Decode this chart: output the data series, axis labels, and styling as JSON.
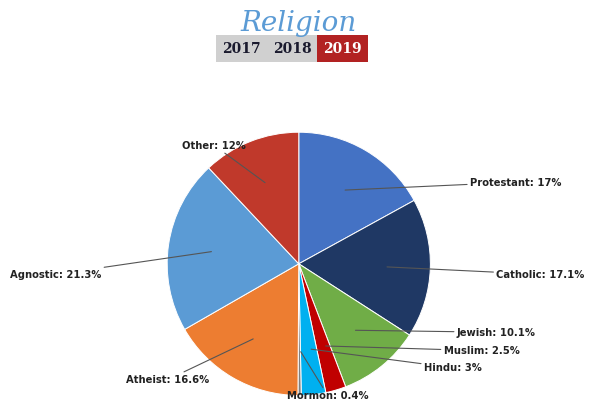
{
  "title": "Religion",
  "title_color": "#5b9bd5",
  "title_fontsize": 20,
  "year_labels": [
    "2017",
    "2018",
    "2019"
  ],
  "year_bg_colors": [
    "#d0d0d0",
    "#d0d0d0",
    "#b22222"
  ],
  "year_text_colors": [
    "#1a1a2e",
    "#1a1a2e",
    "#ffffff"
  ],
  "slices": [
    {
      "label": "Protestant",
      "value": 17.0,
      "color": "#4472c4",
      "pct": "17%"
    },
    {
      "label": "Catholic",
      "value": 17.1,
      "color": "#1f3864",
      "pct": "17.1%"
    },
    {
      "label": "Jewish",
      "value": 10.1,
      "color": "#70ad47",
      "pct": "10.1%"
    },
    {
      "label": "Muslim",
      "value": 2.5,
      "color": "#c00000",
      "pct": "2.5%"
    },
    {
      "label": "Hindu",
      "value": 3.0,
      "color": "#00b0f0",
      "pct": "3%"
    },
    {
      "label": "Mormon",
      "value": 0.4,
      "color": "#808080",
      "pct": "0.4%"
    },
    {
      "label": "Atheist",
      "value": 16.6,
      "color": "#ed7d31",
      "pct": "16.6%"
    },
    {
      "label": "Agnostic",
      "value": 21.3,
      "color": "#5b9bd5",
      "pct": "21.3%"
    },
    {
      "label": "Other",
      "value": 12.0,
      "color": "#c0392b",
      "pct": "12%"
    }
  ],
  "label_configs": [
    [
      "Protestant",
      1.3,
      0.62,
      "left"
    ],
    [
      "Catholic",
      1.5,
      -0.08,
      "left"
    ],
    [
      "Jewish",
      1.2,
      -0.52,
      "left"
    ],
    [
      "Muslim",
      1.1,
      -0.66,
      "left"
    ],
    [
      "Hindu",
      0.95,
      -0.79,
      "left"
    ],
    [
      "Mormon",
      0.22,
      -1.0,
      "center"
    ],
    [
      "Atheist",
      -0.68,
      -0.88,
      "right"
    ],
    [
      "Agnostic",
      -1.5,
      -0.08,
      "right"
    ],
    [
      "Other",
      -0.4,
      0.9,
      "right"
    ]
  ]
}
